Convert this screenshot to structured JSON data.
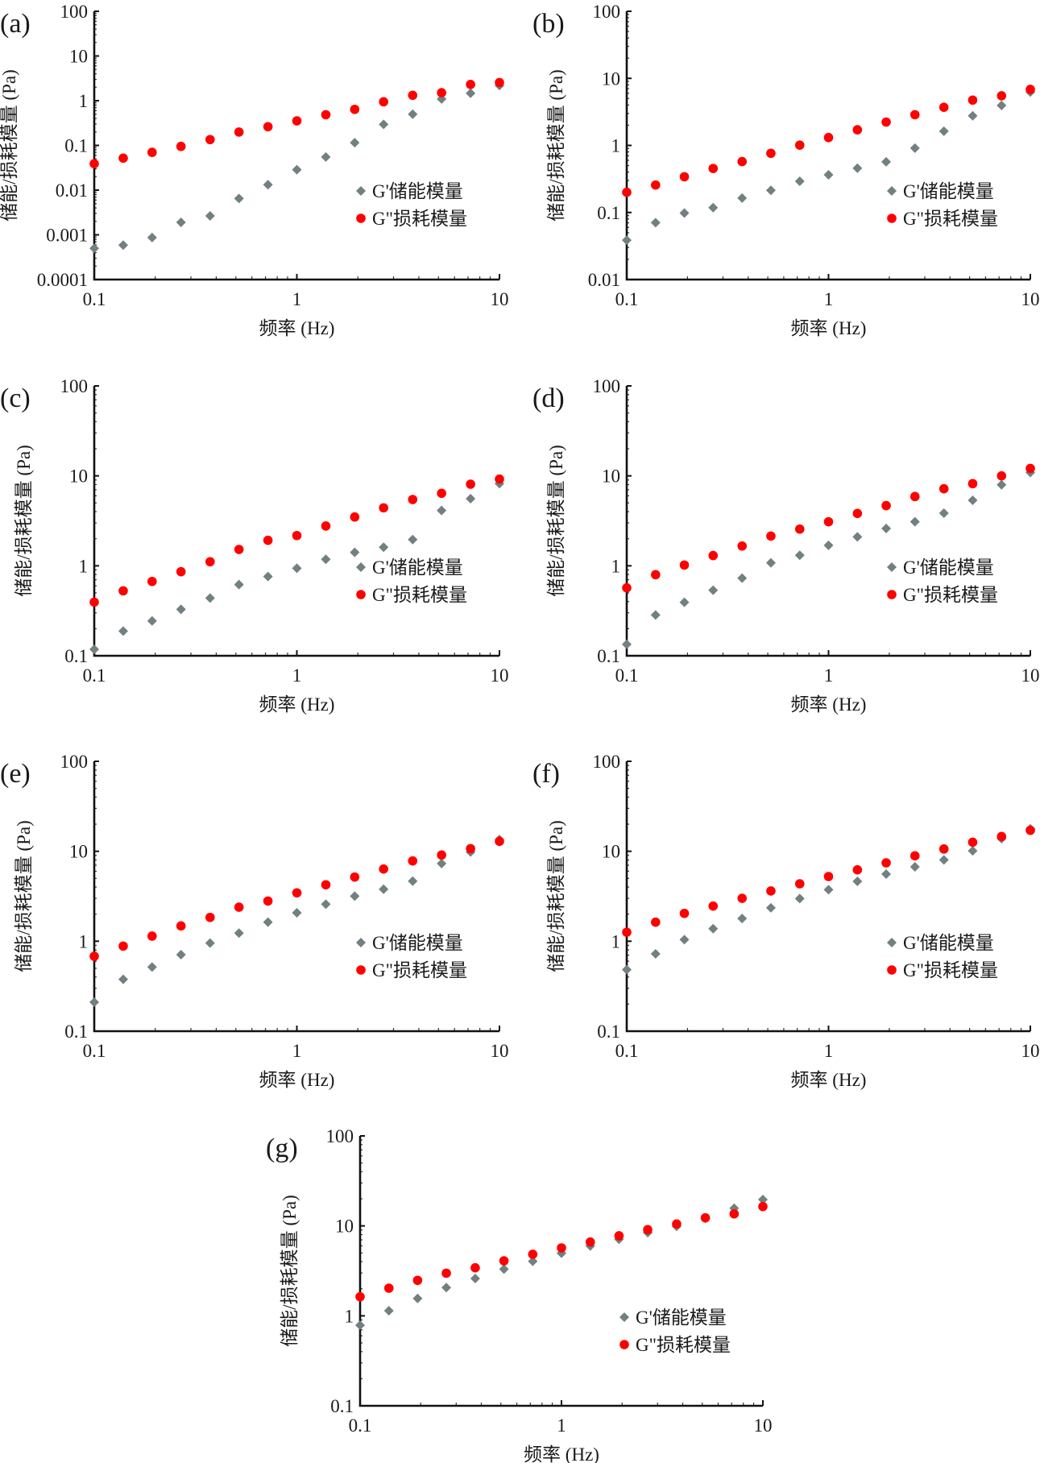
{
  "figure": {
    "legend": {
      "storage": "G'储能模量",
      "loss": "G\"损耗模量"
    },
    "colors": {
      "storage": "#718080",
      "loss": "#ff0000",
      "axis": "#111111"
    }
  },
  "chart_data": [
    {
      "panel": "(a)",
      "type": "scatter",
      "xscale": "log",
      "yscale": "log",
      "xlabel": "频率 (Hz)",
      "ylabel": "储能/损耗模量 (Pa)",
      "xlim": [
        0.1,
        10
      ],
      "ylim": [
        0.0001,
        100
      ],
      "xticks": [
        "0.1",
        "1",
        "10"
      ],
      "yticks": [
        "0.0001",
        "0.001",
        "0.01",
        "0.1",
        "1",
        "10",
        "100"
      ],
      "legend_position": "bottom-right",
      "x": [
        0.1,
        0.139,
        0.193,
        0.268,
        0.373,
        0.518,
        0.72,
        1,
        1.39,
        1.93,
        2.68,
        3.73,
        5.18,
        7.2,
        10
      ],
      "series": [
        {
          "name": "G'储能模量",
          "marker": "diamond",
          "values": [
            0.0005,
            0.00059,
            0.00087,
            0.0019,
            0.00265,
            0.0065,
            0.0132,
            0.0286,
            0.055,
            0.115,
            0.296,
            0.5,
            1.09,
            1.47,
            2.19
          ]
        },
        {
          "name": "G\"损耗模量",
          "marker": "circle",
          "values": [
            0.039,
            0.052,
            0.07,
            0.095,
            0.135,
            0.199,
            0.262,
            0.354,
            0.486,
            0.64,
            0.946,
            1.32,
            1.51,
            2.31,
            2.55
          ]
        }
      ]
    },
    {
      "panel": "(b)",
      "type": "scatter",
      "xscale": "log",
      "yscale": "log",
      "xlabel": "频率 (Hz)",
      "ylabel": "储能/损耗模量 (Pa)",
      "xlim": [
        0.1,
        10
      ],
      "ylim": [
        0.01,
        100
      ],
      "xticks": [
        "0.1",
        "1",
        "10"
      ],
      "yticks": [
        "0.01",
        "0.1",
        "1",
        "10",
        "100"
      ],
      "legend_position": "bottom-right",
      "x": [
        0.1,
        0.139,
        0.193,
        0.268,
        0.373,
        0.518,
        0.72,
        1,
        1.39,
        1.93,
        2.68,
        3.73,
        5.18,
        7.2,
        10
      ],
      "series": [
        {
          "name": "G'储能模量",
          "marker": "diamond",
          "values": [
            0.0386,
            0.0706,
            0.098,
            0.118,
            0.164,
            0.214,
            0.292,
            0.364,
            0.457,
            0.569,
            0.91,
            1.63,
            2.76,
            3.95,
            6.24
          ]
        },
        {
          "name": "G\"损耗模量",
          "marker": "circle",
          "values": [
            0.2,
            0.257,
            0.341,
            0.453,
            0.574,
            0.763,
            1.01,
            1.31,
            1.71,
            2.23,
            2.87,
            3.7,
            4.74,
            5.49,
            6.84
          ]
        }
      ]
    },
    {
      "panel": "(c)",
      "type": "scatter",
      "xscale": "log",
      "yscale": "log",
      "xlabel": "频率 (Hz)",
      "ylabel": "储能/损耗模量 (Pa)",
      "xlim": [
        0.1,
        10
      ],
      "ylim": [
        0.1,
        100
      ],
      "xticks": [
        "0.1",
        "1",
        "10"
      ],
      "yticks": [
        "0.1",
        "1",
        "10",
        "100"
      ],
      "legend_position": "bottom-right",
      "x": [
        0.1,
        0.139,
        0.193,
        0.268,
        0.373,
        0.518,
        0.72,
        1,
        1.39,
        1.93,
        2.68,
        3.73,
        5.18,
        7.2,
        10
      ],
      "series": [
        {
          "name": "G'储能模量",
          "marker": "diamond",
          "values": [
            0.118,
            0.188,
            0.244,
            0.328,
            0.438,
            0.618,
            0.76,
            0.94,
            1.18,
            1.41,
            1.61,
            1.96,
            4.12,
            5.57,
            8.19
          ]
        },
        {
          "name": "G\"损耗模量",
          "marker": "circle",
          "values": [
            0.395,
            0.527,
            0.67,
            0.86,
            1.11,
            1.52,
            1.92,
            2.17,
            2.77,
            3.49,
            4.41,
            5.46,
            6.4,
            8.08,
            9.2
          ]
        }
      ]
    },
    {
      "panel": "(d)",
      "type": "scatter",
      "xscale": "log",
      "yscale": "log",
      "xlabel": "频率 (Hz)",
      "ylabel": "储能/损耗模量 (Pa)",
      "xlim": [
        0.1,
        10
      ],
      "ylim": [
        0.1,
        100
      ],
      "xticks": [
        "0.1",
        "1",
        "10"
      ],
      "yticks": [
        "0.1",
        "1",
        "10",
        "100"
      ],
      "legend_position": "bottom-right",
      "x": [
        0.1,
        0.139,
        0.193,
        0.268,
        0.373,
        0.518,
        0.72,
        1,
        1.39,
        1.93,
        2.68,
        3.73,
        5.18,
        7.2,
        10
      ],
      "series": [
        {
          "name": "G'储能模量",
          "marker": "diamond",
          "values": [
            0.134,
            0.284,
            0.393,
            0.535,
            0.729,
            1.08,
            1.31,
            1.69,
            2.1,
            2.6,
            3.09,
            3.85,
            5.35,
            7.96,
            10.9
          ]
        },
        {
          "name": "G\"损耗模量",
          "marker": "circle",
          "values": [
            0.569,
            0.797,
            1.02,
            1.3,
            1.66,
            2.14,
            2.56,
            3.09,
            3.82,
            4.67,
            5.89,
            7.19,
            8.19,
            10.0,
            12.1
          ]
        }
      ]
    },
    {
      "panel": "(e)",
      "type": "scatter",
      "xscale": "log",
      "yscale": "log",
      "xlabel": "频率 (Hz)",
      "ylabel": "储能/损耗模量 (Pa)",
      "xlim": [
        0.1,
        10
      ],
      "ylim": [
        0.1,
        100
      ],
      "xticks": [
        "0.1",
        "1",
        "10"
      ],
      "yticks": [
        "0.1",
        "1",
        "10",
        "100"
      ],
      "legend_position": "bottom-right",
      "x": [
        0.1,
        0.139,
        0.193,
        0.268,
        0.373,
        0.518,
        0.72,
        1,
        1.39,
        1.93,
        2.68,
        3.73,
        5.18,
        7.2,
        10
      ],
      "series": [
        {
          "name": "G'储能模量",
          "marker": "diamond",
          "values": [
            0.21,
            0.377,
            0.517,
            0.709,
            0.953,
            1.23,
            1.63,
            2.07,
            2.58,
            3.17,
            3.79,
            4.66,
            7.3,
            9.8,
            13.5
          ]
        },
        {
          "name": "G\"损耗模量",
          "marker": "circle",
          "values": [
            0.68,
            0.883,
            1.14,
            1.48,
            1.84,
            2.39,
            2.8,
            3.45,
            4.24,
            5.17,
            6.35,
            7.81,
            9.08,
            10.7,
            12.9
          ]
        }
      ]
    },
    {
      "panel": "(f)",
      "type": "scatter",
      "xscale": "log",
      "yscale": "log",
      "xlabel": "频率 (Hz)",
      "ylabel": "储能/损耗模量 (Pa)",
      "xlim": [
        0.1,
        10
      ],
      "ylim": [
        0.1,
        100
      ],
      "xticks": [
        "0.1",
        "1",
        "10"
      ],
      "yticks": [
        "0.1",
        "1",
        "10",
        "100"
      ],
      "legend_position": "bottom-right",
      "x": [
        0.1,
        0.139,
        0.193,
        0.268,
        0.373,
        0.518,
        0.72,
        1,
        1.39,
        1.93,
        2.68,
        3.73,
        5.18,
        7.2,
        10
      ],
      "series": [
        {
          "name": "G'储能模量",
          "marker": "diamond",
          "values": [
            0.483,
            0.724,
            1.04,
            1.38,
            1.79,
            2.35,
            2.98,
            3.74,
            4.63,
            5.57,
            6.71,
            8.02,
            10.1,
            13.8,
            17.8
          ]
        },
        {
          "name": "G\"损耗模量",
          "marker": "circle",
          "values": [
            1.26,
            1.63,
            2.04,
            2.46,
            3.0,
            3.62,
            4.35,
            5.24,
            6.22,
            7.44,
            8.9,
            10.6,
            12.6,
            14.6,
            17.1
          ]
        }
      ]
    },
    {
      "panel": "(g)",
      "type": "scatter",
      "xscale": "log",
      "yscale": "log",
      "xlabel": "频率 (Hz)",
      "ylabel": "储能/损耗模量 (Pa)",
      "xlim": [
        0.1,
        10
      ],
      "ylim": [
        0.1,
        100
      ],
      "xticks": [
        "0.1",
        "1",
        "10"
      ],
      "yticks": [
        "0.1",
        "1",
        "10",
        "100"
      ],
      "legend_position": "bottom-right",
      "x": [
        0.1,
        0.139,
        0.193,
        0.268,
        0.373,
        0.518,
        0.72,
        1,
        1.39,
        1.93,
        2.68,
        3.73,
        5.18,
        7.2,
        10
      ],
      "series": [
        {
          "name": "G'储能模量",
          "marker": "diamond",
          "values": [
            0.787,
            1.14,
            1.56,
            2.06,
            2.6,
            3.3,
            4.04,
            4.96,
            5.98,
            7.1,
            8.42,
            9.87,
            12.1,
            15.7,
            19.6
          ]
        },
        {
          "name": "G\"损耗模量",
          "marker": "circle",
          "values": [
            1.63,
            2.03,
            2.48,
            2.98,
            3.42,
            4.09,
            4.83,
            5.69,
            6.62,
            7.76,
            9.08,
            10.5,
            12.3,
            13.6,
            16.4
          ]
        }
      ]
    }
  ]
}
